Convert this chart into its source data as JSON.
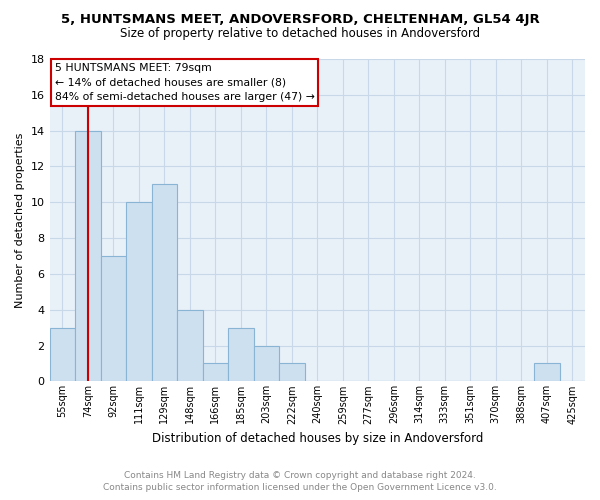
{
  "title_line1": "5, HUNTSMANS MEET, ANDOVERSFORD, CHELTENHAM, GL54 4JR",
  "title_line2": "Size of property relative to detached houses in Andoversford",
  "xlabel": "Distribution of detached houses by size in Andoversford",
  "ylabel": "Number of detached properties",
  "footer_line1": "Contains HM Land Registry data © Crown copyright and database right 2024.",
  "footer_line2": "Contains public sector information licensed under the Open Government Licence v3.0.",
  "bin_labels": [
    "55sqm",
    "74sqm",
    "92sqm",
    "111sqm",
    "129sqm",
    "148sqm",
    "166sqm",
    "185sqm",
    "203sqm",
    "222sqm",
    "240sqm",
    "259sqm",
    "277sqm",
    "296sqm",
    "314sqm",
    "333sqm",
    "351sqm",
    "370sqm",
    "388sqm",
    "407sqm",
    "425sqm"
  ],
  "bar_values": [
    3,
    14,
    7,
    10,
    11,
    4,
    1,
    3,
    2,
    1,
    0,
    0,
    0,
    0,
    0,
    0,
    0,
    0,
    0,
    1,
    0
  ],
  "bar_color": "#cde0f0",
  "bar_edge_color": "#8ab4d4",
  "subject_line_index": 1.0,
  "subject_line_color": "#cc0000",
  "ylim": [
    0,
    18
  ],
  "yticks": [
    0,
    2,
    4,
    6,
    8,
    10,
    12,
    14,
    16,
    18
  ],
  "annotation_title": "5 HUNTSMANS MEET: 79sqm",
  "annotation_line1": "← 14% of detached houses are smaller (8)",
  "annotation_line2": "84% of semi-detached houses are larger (47) →",
  "annotation_box_color": "#ffffff",
  "annotation_box_edge": "#cc0000",
  "grid_color": "#c8d8e8",
  "background_color": "#e8f0f8"
}
